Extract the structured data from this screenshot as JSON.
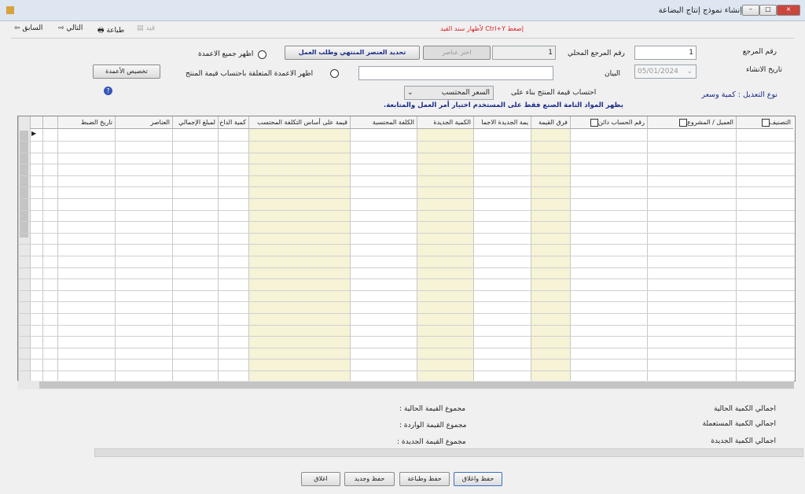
{
  "window": {
    "title": "إنشاء نموذج إنتاج البضاعة"
  },
  "toolbar": {
    "previous": "السابق",
    "next": "التالي",
    "print": "طباعة",
    "post": "قيد",
    "hint": "إضغط Ctrl+Y لأظهار سند القيد"
  },
  "form": {
    "reference_label": "رقم المرجع",
    "reference_value": "1",
    "local_reference_label": "رقم المرجع المحلي",
    "local_reference_value": "1",
    "created_label": "تاريخ الانشاء",
    "created_value": "05/01/2024",
    "statement_label": "البيان",
    "choose_items": "اختر عناصر",
    "select_finished": "تحديد العنصر المنتهي وطلب العمل",
    "show_all_columns": "اظهر جميع الاعمدة",
    "show_value_columns": "اظهر الاعمدة المتعلقة باحتساب قيمة المنتج",
    "customize_columns": "تخصيص الأعمدة",
    "calc_label": "احتساب قيمة المنتج بناء على",
    "calc_value": "السعر المحتسب",
    "adjust_type": "نوع التعديل : كمية وسعر",
    "note": "يظهر المواد التامة الصنع فقط على المستخدم اختيار أمر العمل والمتابعة."
  },
  "grid": {
    "columns": [
      "تاريخ الضبط",
      "العناصر",
      "لمبلغ الإجمالي",
      "كمية الداخ",
      "قيمة على أساس التكلفة المحتسب",
      "الكلفة المحتسبة",
      "الكمية الجديدة",
      "يمة الجديدة الاجما",
      "فرق القيمة",
      "رقم الحساب  دائن",
      "العميل / المشروع",
      "التصنيف"
    ]
  },
  "totals": {
    "current_qty": "اجمالي الكمية الحالية",
    "current_value": "مجموع القيمة الحالية :",
    "used_qty": "اجمالي الكمية المستعملة",
    "incoming_value": "مجموع القيمة الواردة :",
    "new_qty": "اجمالي الكمية الجديدة",
    "new_value": "مجموع القيمة الجديدة :"
  },
  "buttons": {
    "save_close": "حفظ واغلاق",
    "save_print": "حفظ وطباعة",
    "save_new": "حفظ وجديد",
    "close": "اغلاق"
  }
}
